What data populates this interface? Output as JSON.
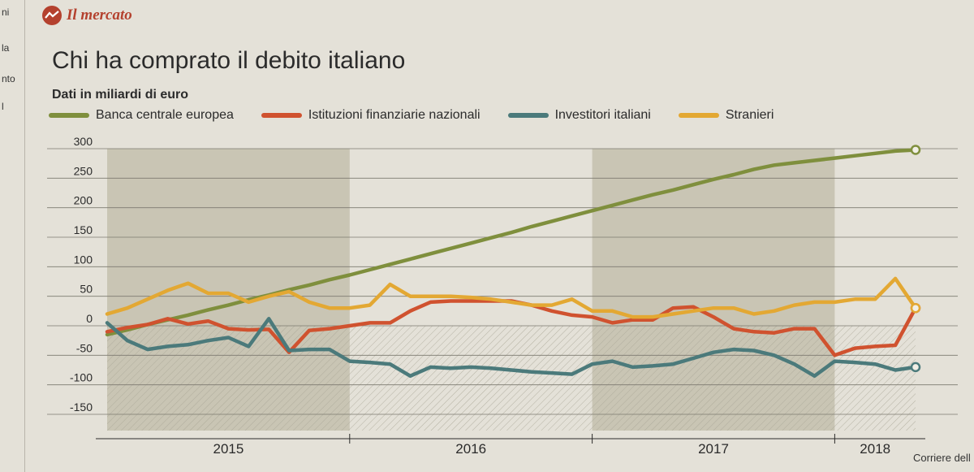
{
  "page": {
    "left_column_fragments": [
      "ni",
      "la",
      "nto",
      "l"
    ],
    "section_label": "Il mercato",
    "credit": "Corriere dell"
  },
  "colors": {
    "accent": "#b4412e",
    "Banca centrale europea": "#7f8f3d",
    "Istituzioni finanziarie nazionali": "#d0522f",
    "Investitori italiani": "#4b7a7b",
    "Stranieri": "#e3a833"
  },
  "chart_data": {
    "type": "line",
    "title": "Chi ha comprato il debito italiano",
    "subtitle": "Dati in miliardi di euro",
    "ylim": [
      -150,
      300
    ],
    "yticks": [
      300,
      250,
      200,
      150,
      100,
      50,
      0,
      -50,
      -100,
      -150
    ],
    "x": [
      "2015-01",
      "2015-02",
      "2015-03",
      "2015-04",
      "2015-05",
      "2015-06",
      "2015-07",
      "2015-08",
      "2015-09",
      "2015-10",
      "2015-11",
      "2015-12",
      "2016-01",
      "2016-02",
      "2016-03",
      "2016-04",
      "2016-05",
      "2016-06",
      "2016-07",
      "2016-08",
      "2016-09",
      "2016-10",
      "2016-11",
      "2016-12",
      "2017-01",
      "2017-02",
      "2017-03",
      "2017-04",
      "2017-05",
      "2017-06",
      "2017-07",
      "2017-08",
      "2017-09",
      "2017-10",
      "2017-11",
      "2017-12",
      "2018-01",
      "2018-02",
      "2018-03",
      "2018-04",
      "2018-05"
    ],
    "xlabels": [
      "2015",
      "2016",
      "2017",
      "2018"
    ],
    "shaded_years": [
      "2015",
      "2017"
    ],
    "grid": true,
    "legend_position": "top",
    "series": [
      {
        "name": "Banca centrale europea",
        "values": [
          -15,
          -7,
          2,
          10,
          18,
          27,
          35,
          44,
          52,
          61,
          69,
          78,
          86,
          95,
          104,
          113,
          122,
          131,
          140,
          149,
          158,
          168,
          177,
          186,
          195,
          204,
          213,
          222,
          230,
          239,
          248,
          256,
          265,
          272,
          276,
          280,
          284,
          288,
          292,
          296,
          298
        ]
      },
      {
        "name": "Istituzioni finanziarie nazionali",
        "values": [
          -10,
          -3,
          2,
          12,
          3,
          8,
          -5,
          -7,
          -6,
          -45,
          -8,
          -5,
          0,
          5,
          5,
          25,
          40,
          42,
          42,
          42,
          42,
          35,
          25,
          18,
          15,
          5,
          10,
          10,
          30,
          32,
          15,
          -5,
          -10,
          -12,
          -5,
          -5,
          -50,
          -38,
          -35,
          -33,
          30
        ]
      },
      {
        "name": "Investitori italiani",
        "values": [
          5,
          -25,
          -40,
          -35,
          -32,
          -25,
          -20,
          -35,
          12,
          -42,
          -40,
          -40,
          -60,
          -62,
          -65,
          -85,
          -70,
          -72,
          -70,
          -72,
          -75,
          -78,
          -80,
          -82,
          -65,
          -60,
          -70,
          -68,
          -65,
          -55,
          -45,
          -40,
          -42,
          -50,
          -65,
          -85,
          -60,
          -62,
          -65,
          -75,
          -70
        ]
      },
      {
        "name": "Stranieri",
        "values": [
          20,
          30,
          45,
          60,
          72,
          55,
          55,
          40,
          50,
          58,
          40,
          30,
          30,
          35,
          70,
          50,
          50,
          50,
          48,
          45,
          40,
          35,
          35,
          45,
          25,
          25,
          15,
          15,
          20,
          25,
          30,
          30,
          20,
          25,
          35,
          40,
          40,
          45,
          45,
          80,
          30
        ]
      }
    ]
  }
}
